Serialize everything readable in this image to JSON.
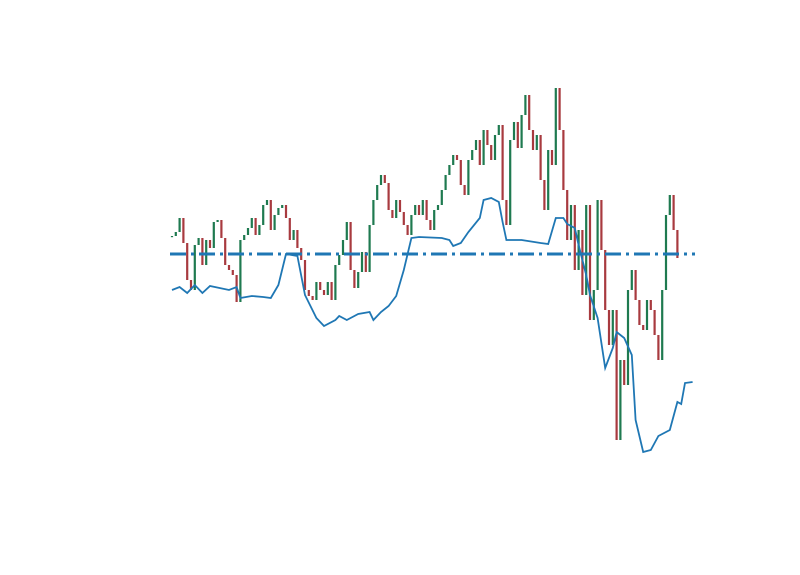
{
  "chart_data": {
    "type": "candlestick",
    "title": "",
    "xlabel": "",
    "ylabel": "",
    "axes_visible": false,
    "grid": false,
    "xlim": [
      -4,
      141
    ],
    "ylim": [
      120,
      540
    ],
    "colors": {
      "up": "#1f7a50",
      "down": "#a83a3f",
      "line": "#1f77b4",
      "hline": "#1f77b4"
    },
    "candles": {
      "note_open_equals_previous_close": true,
      "first_open": 364,
      "closes": [
        364,
        368,
        382,
        357,
        320,
        310,
        355,
        362,
        335,
        360,
        352,
        378,
        380,
        362,
        335,
        330,
        325,
        298,
        360,
        365,
        372,
        382,
        365,
        375,
        395,
        400,
        370,
        385,
        392,
        395,
        382,
        360,
        370,
        352,
        340,
        310,
        304,
        300,
        318,
        310,
        305,
        318,
        300,
        335,
        345,
        360,
        378,
        330,
        312,
        328,
        348,
        328,
        375,
        400,
        415,
        425,
        417,
        390,
        382,
        400,
        388,
        375,
        365,
        385,
        395,
        385,
        400,
        380,
        370,
        390,
        395,
        410,
        425,
        435,
        445,
        440,
        415,
        405,
        440,
        450,
        460,
        435,
        470,
        455,
        440,
        465,
        475,
        400,
        375,
        460,
        478,
        452,
        485,
        505,
        470,
        450,
        465,
        420,
        390,
        450,
        435,
        512,
        470,
        410,
        360,
        395,
        330,
        370,
        305,
        395,
        280,
        310,
        400,
        350,
        290,
        255,
        290,
        160,
        240,
        215,
        310,
        330,
        300,
        275,
        270,
        300,
        290,
        265,
        240,
        310,
        385,
        405,
        370,
        342
      ]
    },
    "line": {
      "x": [
        0,
        2,
        4,
        6,
        8,
        10,
        15,
        17,
        18,
        21,
        24,
        26,
        28,
        30,
        33,
        35,
        38,
        40,
        43,
        44,
        46,
        47,
        49,
        52,
        53,
        55,
        57,
        59,
        61,
        63,
        65,
        71,
        73,
        74,
        76,
        78,
        81,
        82,
        84,
        86,
        87,
        88,
        92,
        97,
        99,
        101,
        103,
        104,
        106,
        107,
        109,
        110,
        112,
        114,
        116,
        117,
        119,
        121,
        122,
        124,
        126,
        128,
        131,
        133,
        134,
        135,
        137
      ],
      "y": [
        310,
        313,
        307,
        315,
        307,
        314,
        310,
        313,
        302,
        304,
        303,
        302,
        315,
        346,
        344,
        305,
        282,
        274,
        280,
        284,
        280,
        282,
        286,
        288,
        280,
        288,
        294,
        304,
        330,
        362,
        363,
        362,
        360,
        354,
        357,
        368,
        382,
        400,
        402,
        398,
        378,
        360,
        360,
        357,
        356,
        382,
        382,
        376,
        372,
        355,
        325,
        305,
        282,
        232,
        252,
        268,
        262,
        245,
        180,
        148,
        150,
        164,
        170,
        198,
        196,
        217,
        218
      ]
    },
    "hline": {
      "y": 346,
      "style": "dash-dot"
    }
  }
}
